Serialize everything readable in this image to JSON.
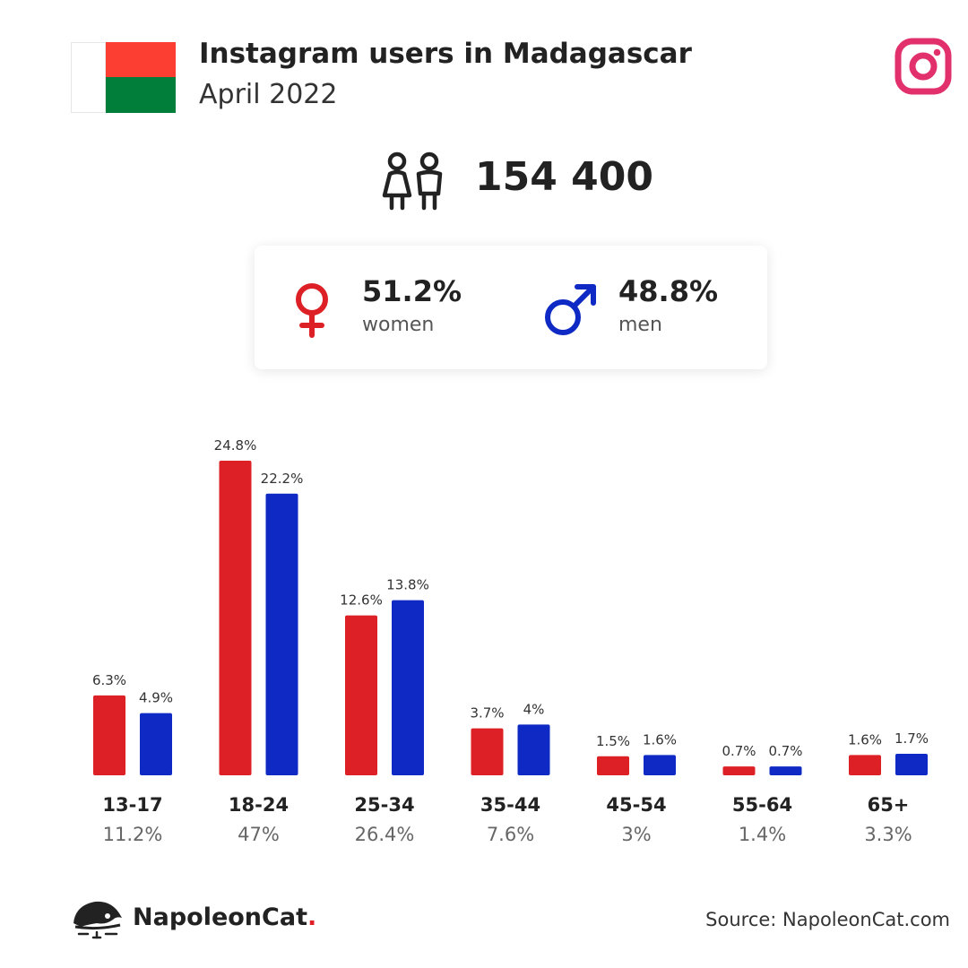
{
  "header": {
    "title": "Instagram users in Madagascar",
    "subtitle": "April 2022",
    "flag_colors": {
      "white": "#ffffff",
      "red": "#fc3d32",
      "green": "#007e3a"
    },
    "brand_icon": "instagram-icon"
  },
  "total": {
    "icon": "users-icon",
    "value": "154 400"
  },
  "gender": {
    "women": {
      "icon": "female-symbol-icon",
      "percent": "51.2%",
      "label": "women",
      "color": "#dd2026"
    },
    "men": {
      "icon": "male-symbol-icon",
      "percent": "48.8%",
      "label": "men",
      "color": "#0f2ac4"
    }
  },
  "chart_data": {
    "type": "bar",
    "categories": [
      "13-17",
      "18-24",
      "25-34",
      "35-44",
      "45-54",
      "55-64",
      "65+"
    ],
    "category_totals": [
      "11.2%",
      "47%",
      "26.4%",
      "7.6%",
      "3%",
      "1.4%",
      "3.3%"
    ],
    "series": [
      {
        "key": "women",
        "color": "#dd2026",
        "values": [
          6.3,
          24.8,
          12.6,
          3.7,
          1.5,
          0.7,
          1.6
        ],
        "labels": [
          "6.3%",
          "24.8%",
          "12.6%",
          "3.7%",
          "1.5%",
          "0.7%",
          "1.6%"
        ]
      },
      {
        "key": "men",
        "color": "#0f2ac4",
        "values": [
          4.9,
          22.2,
          13.8,
          4,
          1.6,
          0.7,
          1.7
        ],
        "labels": [
          "4.9%",
          "22.2%",
          "13.8%",
          "4%",
          "1.6%",
          "0.7%",
          "1.7%"
        ]
      }
    ],
    "ylim": [
      0,
      24.8
    ],
    "grid": false,
    "legend": "none"
  },
  "footer": {
    "brand_name": "NapoleonCat",
    "brand_dot": ".",
    "source": "Source: NapoleonCat.com"
  }
}
